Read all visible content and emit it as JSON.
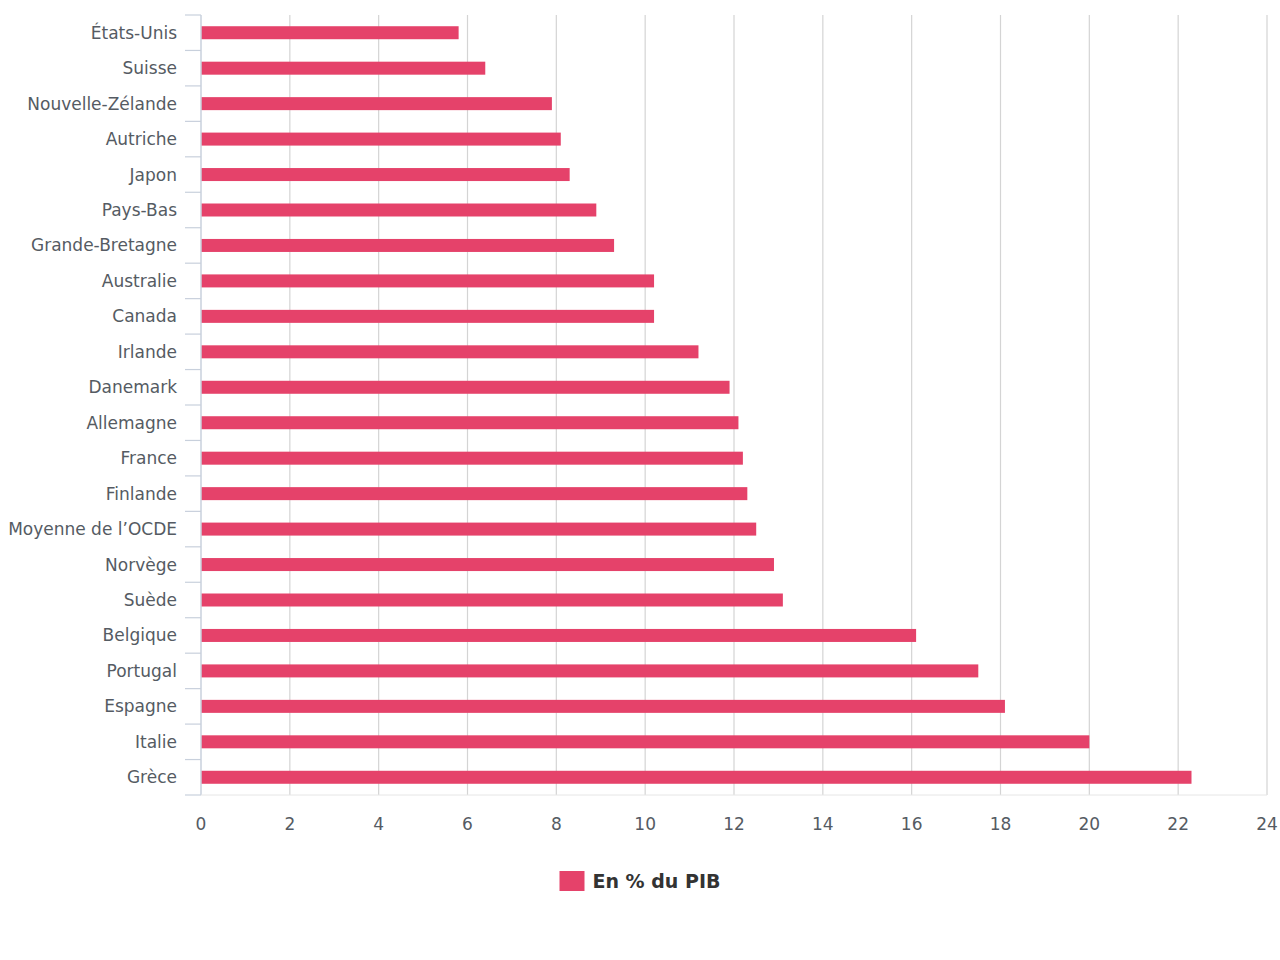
{
  "chart_data": {
    "type": "bar",
    "orientation": "horizontal",
    "categories": [
      "États-Unis",
      "Suisse",
      "Nouvelle-Zélande",
      "Autriche",
      "Japon",
      "Pays-Bas",
      "Grande-Bretagne",
      "Australie",
      "Canada",
      "Irlande",
      "Danemark",
      "Allemagne",
      "France",
      "Finlande",
      "Moyenne de l’OCDE",
      "Norvège",
      "Suède",
      "Belgique",
      "Portugal",
      "Espagne",
      "Italie",
      "Grèce"
    ],
    "series": [
      {
        "name": "En % du PIB",
        "color": "#e5426a",
        "values": [
          5.8,
          6.4,
          7.9,
          8.1,
          8.3,
          8.9,
          9.3,
          10.2,
          10.2,
          11.2,
          11.9,
          12.1,
          12.2,
          12.3,
          12.5,
          12.9,
          13.1,
          16.1,
          17.5,
          18.1,
          20.0,
          22.3
        ]
      }
    ],
    "xlim": [
      0,
      24
    ],
    "xticks": [
      0,
      2,
      4,
      6,
      8,
      10,
      12,
      14,
      16,
      18,
      20,
      22,
      24
    ],
    "grid": true,
    "legend": "bottom"
  }
}
